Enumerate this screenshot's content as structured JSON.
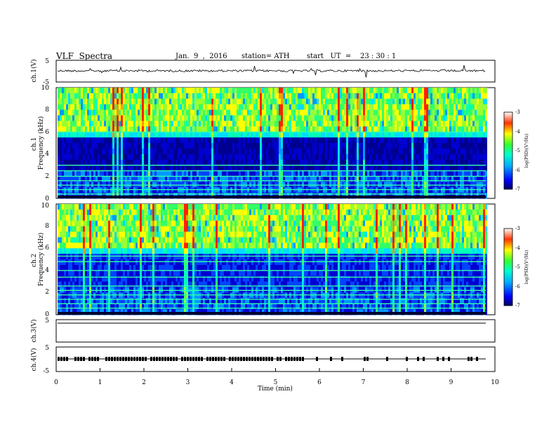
{
  "header": {
    "title": "VLF  Spectra",
    "date": "Jan.  9  ,  2016",
    "station": "station= ATH",
    "start": "start   UT  =    23 : 30 : 1"
  },
  "colors": {
    "background": "#ffffff",
    "axes": "#000000",
    "spectrogram_low": "#000060",
    "spectrogram_high": "#ff0000"
  },
  "chart_data": [
    {
      "id": "ch1_waveform",
      "type": "line",
      "ylabel": "ch.1(V)",
      "ylim": [
        -5,
        5
      ],
      "y_ticks": [
        "5",
        "-5"
      ],
      "xlim": [
        0,
        10
      ]
    },
    {
      "id": "ch1_spectrogram",
      "type": "heatmap",
      "ylabel": "ch.1\nFrequency (kHz)",
      "ylim": [
        0,
        10
      ],
      "y_ticks": [
        "0",
        "2",
        "4",
        "6",
        "8",
        "10"
      ],
      "xlim": [
        0,
        10
      ],
      "colorbar": {
        "label": "log(PSD)(V²/Hz)",
        "range": [
          -7,
          -3
        ],
        "ticks": [
          "-3",
          "-4",
          "-5",
          "-6",
          "-7"
        ]
      }
    },
    {
      "id": "ch2_spectrogram",
      "type": "heatmap",
      "ylabel": "ch.2\nFrequency (kHz)",
      "ylim": [
        0,
        10
      ],
      "y_ticks": [
        "0",
        "2",
        "4",
        "6",
        "8",
        "10"
      ],
      "xlim": [
        0,
        10
      ],
      "colorbar": {
        "label": "log(PSD)(V²/Hz)",
        "range": [
          -7,
          -3
        ],
        "ticks": [
          "-3",
          "-4",
          "-5",
          "-6",
          "-7"
        ]
      }
    },
    {
      "id": "ch3_waveform",
      "type": "line",
      "ylabel": "ch.3(V)",
      "ylim": [
        -5,
        5
      ],
      "y_ticks": [
        "5"
      ],
      "xlim": [
        0,
        10
      ]
    },
    {
      "id": "ch4_waveform",
      "type": "line",
      "ylabel": "ch.4(V)",
      "ylim": [
        -5,
        5
      ],
      "y_ticks": [
        "5",
        "-5"
      ],
      "xlim": [
        0,
        10
      ],
      "xlabel": "Time  (min)",
      "x_ticks": [
        "0",
        "1",
        "2",
        "3",
        "4",
        "5",
        "6",
        "7",
        "8",
        "9",
        "10"
      ]
    }
  ]
}
